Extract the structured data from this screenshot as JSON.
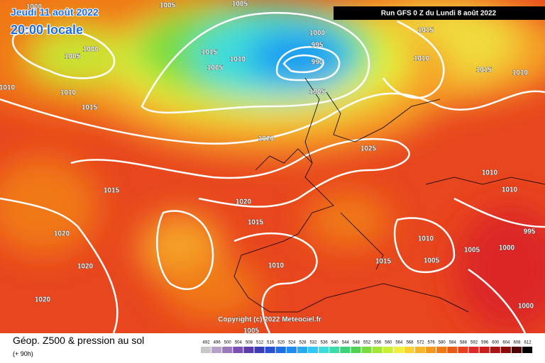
{
  "header": {
    "date": "Jeudi 11 août 2022",
    "time": "20:00 locale",
    "run": "Run GFS 0 Z du Lundi 8 août 2022"
  },
  "copyright": "Copyright (c) 2022 Meteociel.fr",
  "footer": {
    "title": "Géop. Z500 & pression au sol",
    "lead": "(+ 90h)"
  },
  "colorbar": {
    "values": [
      492,
      496,
      500,
      504,
      508,
      512,
      516,
      520,
      524,
      528,
      532,
      536,
      540,
      544,
      548,
      552,
      556,
      560,
      564,
      568,
      572,
      576,
      580,
      584,
      588,
      592,
      596,
      600,
      604,
      608,
      612
    ],
    "colors": [
      "#c8c8c8",
      "#b4a0c8",
      "#9a78be",
      "#7a50b4",
      "#5a3ca8",
      "#3c3cb4",
      "#2850d2",
      "#1e6ee6",
      "#1e8cf0",
      "#28aaf5",
      "#32c8f5",
      "#3cdcdc",
      "#3cdcaa",
      "#3cd278",
      "#50d250",
      "#78dc3c",
      "#a0e632",
      "#c8f032",
      "#f0f03c",
      "#fad232",
      "#fab428",
      "#f5961e",
      "#f07814",
      "#eb5a14",
      "#e6401e",
      "#dc2828",
      "#c81e1e",
      "#aa1414",
      "#8c0a0a",
      "#500000",
      "#000000"
    ]
  },
  "isobars": [
    "1000",
    "1005",
    "1005",
    "1000",
    "1005",
    "1015",
    "1000",
    "995",
    "990",
    "1010",
    "1005",
    "1015",
    "1010",
    "1015",
    "1010",
    "1010",
    "1010",
    "1015",
    "1005",
    "1020",
    "1025",
    "1010",
    "1010",
    "1015",
    "1020",
    "1015",
    "995",
    "1020",
    "1010",
    "1005",
    "1000",
    "1005",
    "1015",
    "1010",
    "1020",
    "1020",
    "1000",
    "1005"
  ]
}
